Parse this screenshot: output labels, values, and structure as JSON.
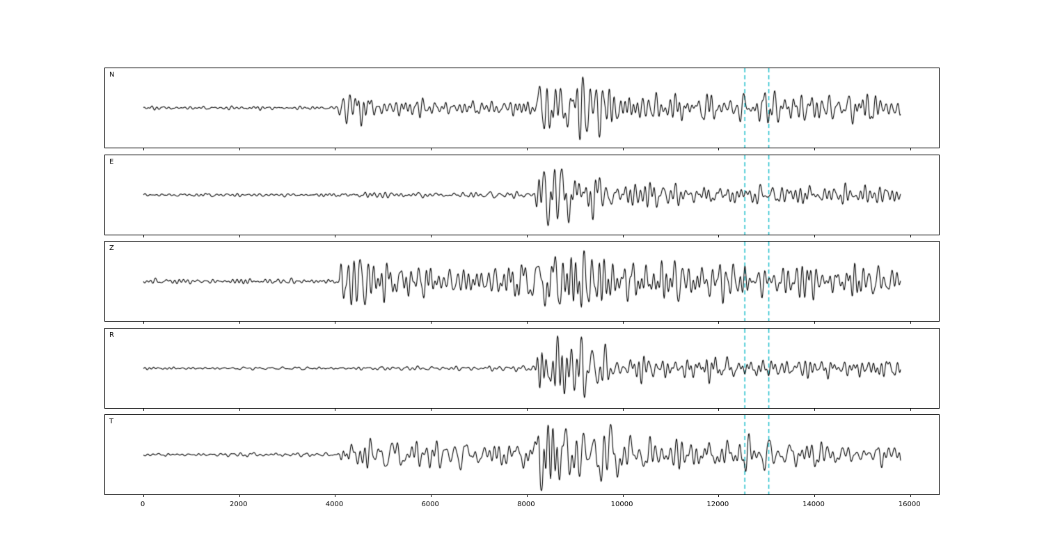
{
  "figure": {
    "panel_labels": [
      "N",
      "E",
      "Z",
      "R",
      "T"
    ],
    "background_color": "#ffffff",
    "frame_color": "#000000"
  },
  "chart_data": {
    "type": "line",
    "title": "",
    "xlabel": "",
    "ylabel": "",
    "grid": false,
    "legend": "none",
    "description": "Five stacked seismogram traces (components N, E, Z, R, T) sharing one x axis in samples; quiet noise until ~4100, a first arrival burst near 4200 on N, Z and T, a large arrival near 8300 on all traces, long coda to 15800; two dashed cyan vertical marker lines near 12550 and 13050.",
    "x_ticks": [
      0,
      2000,
      4000,
      6000,
      8000,
      10000,
      12000,
      14000,
      16000
    ],
    "x_tick_labels": [
      "0",
      "2000",
      "4000",
      "6000",
      "8000",
      "10000",
      "12000",
      "14000",
      "16000"
    ],
    "x_range": [
      -800,
      16600
    ],
    "data_x_range": [
      0,
      15800
    ],
    "trace_color": "#000000",
    "vlines": {
      "positions": [
        12550,
        13050
      ],
      "color": "#1fbecb",
      "style": "dashed"
    },
    "traces": [
      {
        "label": "N",
        "seed": 42,
        "envelope": [
          [
            0,
            0.03
          ],
          [
            4050,
            0.035
          ],
          [
            4150,
            0.42
          ],
          [
            4450,
            0.35
          ],
          [
            4800,
            0.2
          ],
          [
            6000,
            0.17
          ],
          [
            8150,
            0.18
          ],
          [
            8280,
            1.0
          ],
          [
            8700,
            0.8
          ],
          [
            9300,
            0.7
          ],
          [
            9800,
            0.55
          ],
          [
            10400,
            0.38
          ],
          [
            11500,
            0.3
          ],
          [
            13000,
            0.3
          ],
          [
            15800,
            0.27
          ]
        ]
      },
      {
        "label": "E",
        "seed": 7,
        "envelope": [
          [
            0,
            0.03
          ],
          [
            4200,
            0.035
          ],
          [
            5000,
            0.055
          ],
          [
            6500,
            0.06
          ],
          [
            8150,
            0.07
          ],
          [
            8300,
            1.0
          ],
          [
            8600,
            0.75
          ],
          [
            9200,
            0.5
          ],
          [
            9900,
            0.32
          ],
          [
            11000,
            0.24
          ],
          [
            13000,
            0.2
          ],
          [
            15800,
            0.18
          ]
        ]
      },
      {
        "label": "Z",
        "seed": 19,
        "envelope": [
          [
            0,
            0.045
          ],
          [
            4080,
            0.05
          ],
          [
            4180,
            0.7
          ],
          [
            4500,
            0.45
          ],
          [
            5200,
            0.32
          ],
          [
            6800,
            0.32
          ],
          [
            7600,
            0.38
          ],
          [
            8200,
            0.5
          ],
          [
            8330,
            1.0
          ],
          [
            8800,
            0.6
          ],
          [
            9800,
            0.5
          ],
          [
            11000,
            0.45
          ],
          [
            13000,
            0.38
          ],
          [
            15800,
            0.3
          ]
        ]
      },
      {
        "label": "R",
        "seed": 23,
        "envelope": [
          [
            0,
            0.028
          ],
          [
            4200,
            0.032
          ],
          [
            5500,
            0.05
          ],
          [
            8150,
            0.06
          ],
          [
            8300,
            1.0
          ],
          [
            8600,
            0.8
          ],
          [
            9200,
            0.55
          ],
          [
            10000,
            0.35
          ],
          [
            11000,
            0.26
          ],
          [
            13000,
            0.22
          ],
          [
            15800,
            0.2
          ]
        ]
      },
      {
        "label": "T",
        "seed": 5,
        "envelope": [
          [
            0,
            0.032
          ],
          [
            4080,
            0.04
          ],
          [
            4180,
            0.38
          ],
          [
            4700,
            0.3
          ],
          [
            5500,
            0.28
          ],
          [
            7000,
            0.22
          ],
          [
            8150,
            0.25
          ],
          [
            8300,
            1.05
          ],
          [
            8800,
            0.85
          ],
          [
            9500,
            0.7
          ],
          [
            10300,
            0.45
          ],
          [
            11500,
            0.32
          ],
          [
            13000,
            0.28
          ],
          [
            15800,
            0.25
          ]
        ]
      }
    ]
  }
}
